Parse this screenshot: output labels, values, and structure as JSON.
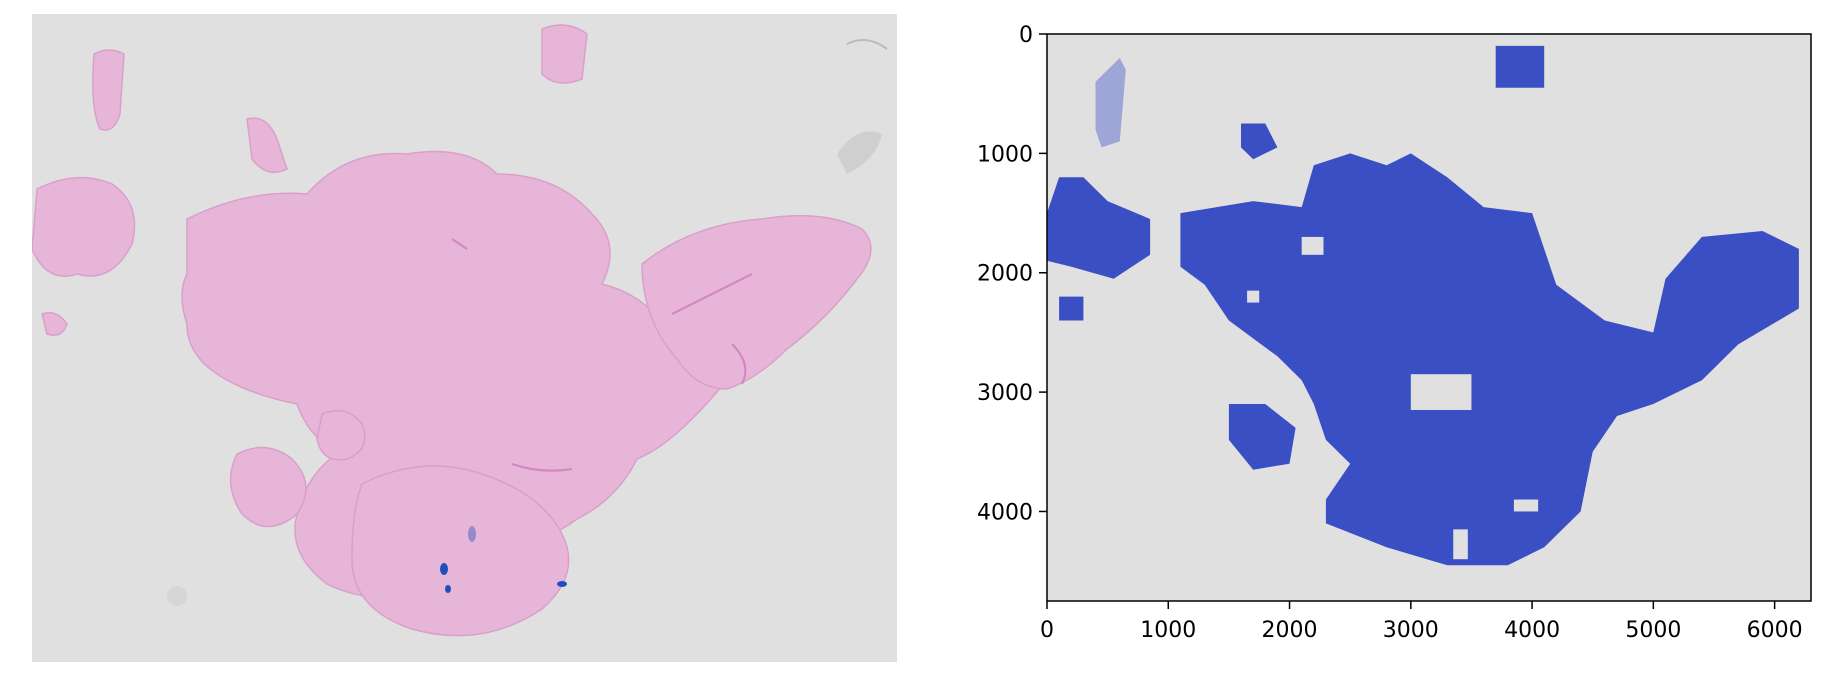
{
  "left_image": {
    "description_icon": "he-stained-tissue-slide",
    "background_color": "#e0e0e0",
    "tissue_color": "#e7b5d8",
    "tissue_dark_color": "#d98fc8",
    "blue_marks_color": "#1f4fbf"
  },
  "right_plot": {
    "type": "image-with-mask-overlay",
    "mask_color": "#3a4fc4",
    "background_color": "#e0e0e0",
    "x_axis": {
      "range": [
        0,
        6300
      ],
      "ticks": [
        "0",
        "1000",
        "2000",
        "3000",
        "4000",
        "5000",
        "6000"
      ]
    },
    "y_axis": {
      "range": [
        0,
        4750
      ],
      "inverted": true,
      "ticks": [
        "0",
        "1000",
        "2000",
        "3000",
        "4000"
      ]
    }
  }
}
